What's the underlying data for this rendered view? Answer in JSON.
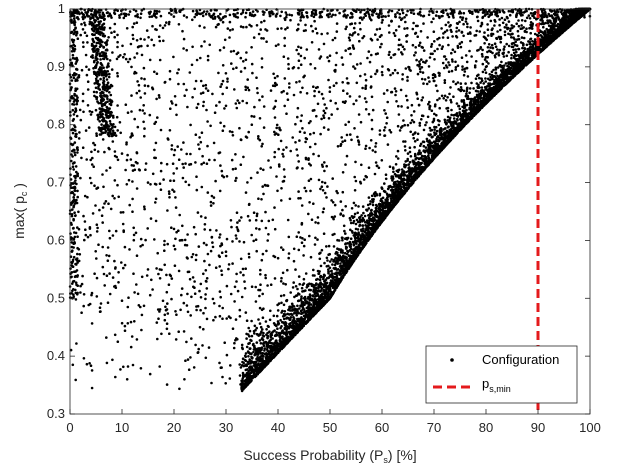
{
  "chart_data": {
    "type": "scatter",
    "xlabel": {
      "main": "Success Probability (P",
      "sub": "s",
      "tail": ") [%]"
    },
    "ylabel": {
      "main": "max( p",
      "sub": "c",
      "tail": " )"
    },
    "xlim": [
      0,
      100
    ],
    "ylim": [
      0.3,
      1
    ],
    "x_ticks": [
      0,
      10,
      20,
      30,
      40,
      50,
      60,
      70,
      80,
      90,
      100
    ],
    "y_ticks": [
      0.3,
      0.4,
      0.5,
      0.6,
      0.7,
      0.8,
      0.9,
      1
    ],
    "grid": false,
    "legend_position": "bottom-right",
    "series": [
      {
        "name": "Configuration",
        "style": "dots",
        "color": "#000000",
        "description_points": "dense cloud of configurations; lower frontier rises from about (33, 0.34) through (50, 0.50) to (100, 1.0)"
      },
      {
        "name": "p",
        "name_sub": "s,min",
        "style": "dashed-vertical-line",
        "color": "#e41a1c",
        "x": 90
      }
    ],
    "sample_points": [
      [
        33.1,
        0.34
      ],
      [
        34.0,
        0.37
      ],
      [
        36.0,
        0.41
      ],
      [
        38.0,
        0.44
      ],
      [
        40.0,
        0.46
      ],
      [
        42.0,
        0.48
      ],
      [
        45.0,
        0.5
      ],
      [
        48.0,
        0.52
      ],
      [
        50.0,
        0.52
      ],
      [
        52.0,
        0.56
      ],
      [
        55.0,
        0.62
      ],
      [
        60.0,
        0.69
      ],
      [
        65.0,
        0.75
      ],
      [
        70.0,
        0.81
      ],
      [
        75.0,
        0.86
      ],
      [
        80.0,
        0.9
      ],
      [
        85.0,
        0.94
      ],
      [
        90.0,
        0.97
      ],
      [
        95.0,
        0.99
      ],
      [
        100.0,
        1.0
      ],
      [
        5.0,
        0.99
      ],
      [
        5.0,
        0.95
      ],
      [
        5.0,
        0.9
      ],
      [
        6.0,
        0.85
      ],
      [
        8.0,
        0.8
      ],
      [
        10.0,
        0.75
      ],
      [
        15.0,
        0.7
      ],
      [
        20.0,
        0.62
      ],
      [
        0.5,
        0.5
      ],
      [
        2.0,
        0.51
      ],
      [
        11.0,
        0.36
      ],
      [
        22.0,
        0.36
      ],
      [
        29.0,
        0.38
      ],
      [
        25.0,
        0.45
      ],
      [
        15.0,
        0.55
      ]
    ]
  }
}
